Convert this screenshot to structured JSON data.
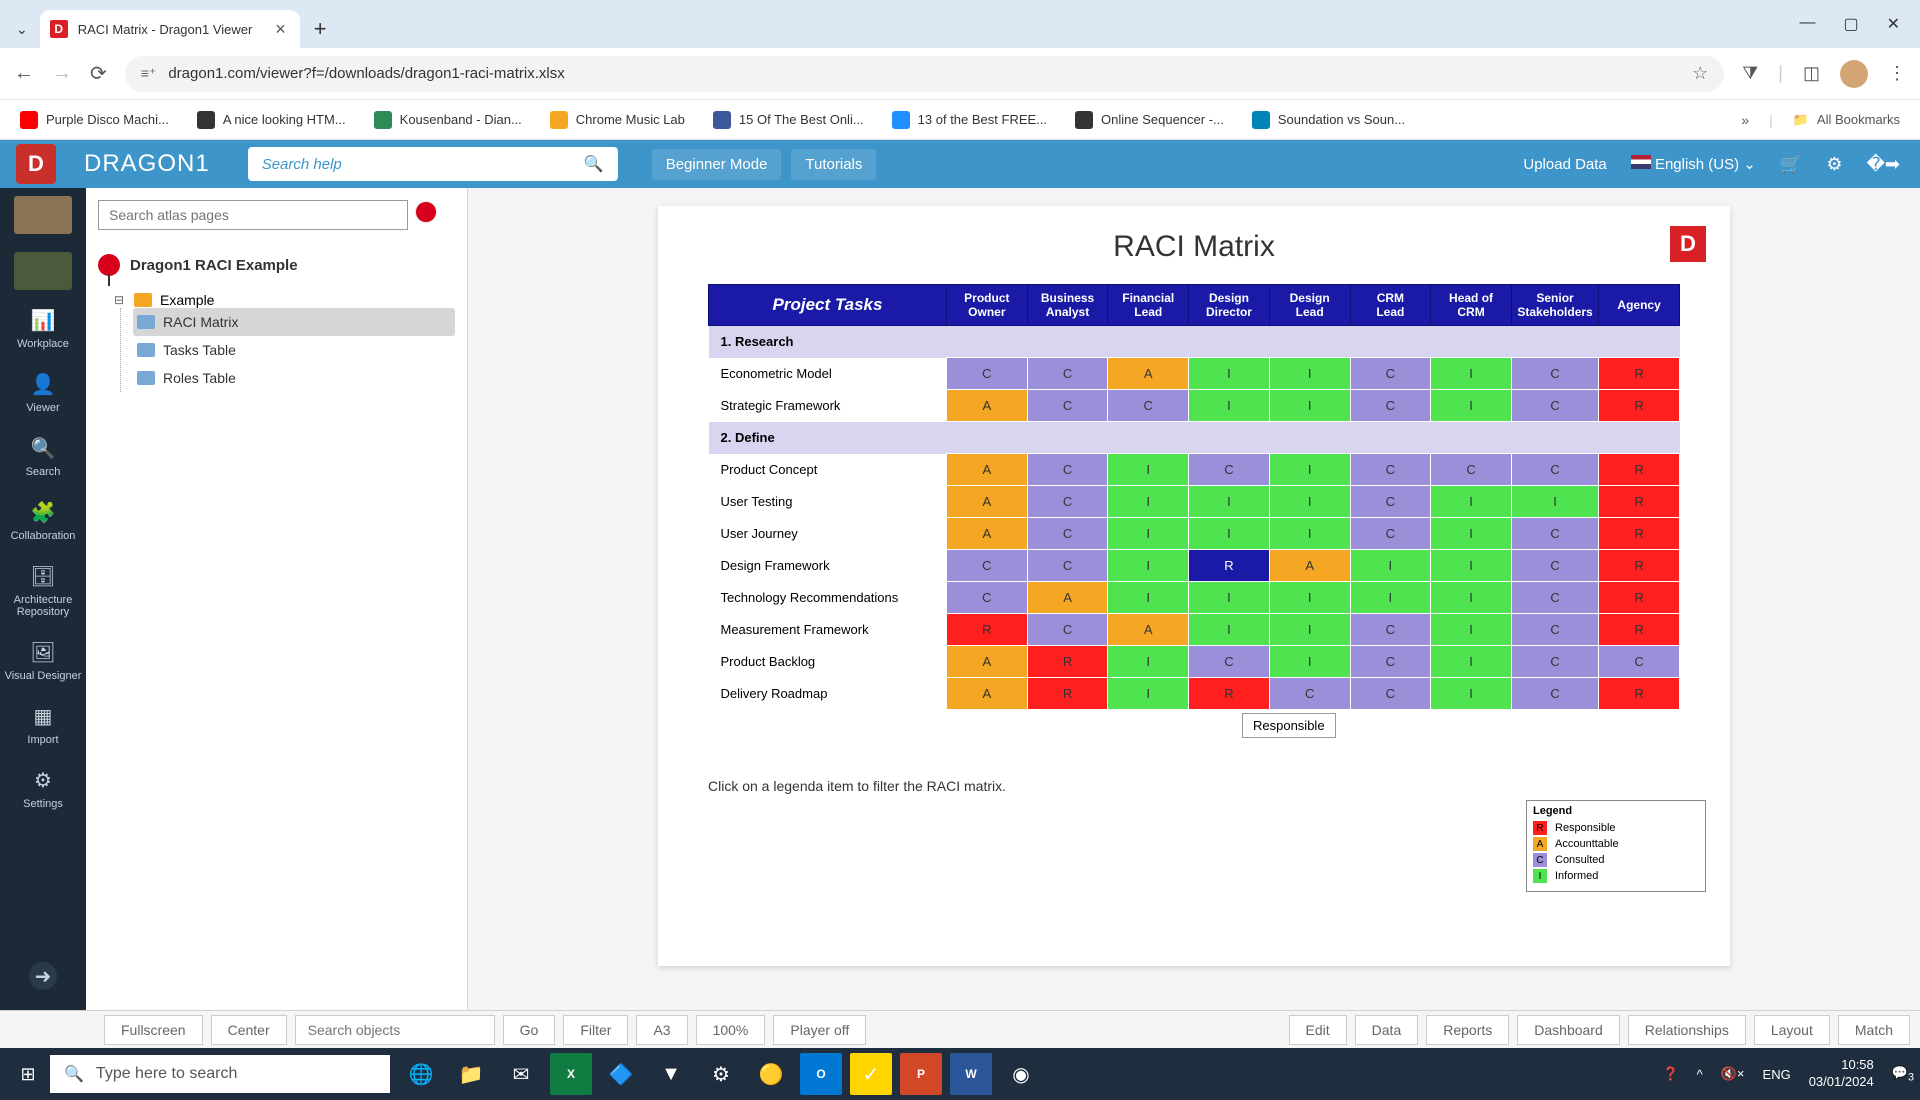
{
  "browser": {
    "tab_title": "RACI Matrix - Dragon1 Viewer",
    "url": "dragon1.com/viewer?f=/downloads/dragon1-raci-matrix.xlsx",
    "bookmarks": [
      {
        "label": "Purple Disco Machi...",
        "color": "#ff0000"
      },
      {
        "label": "A nice looking HTM...",
        "color": "#333"
      },
      {
        "label": "Kousenband - Dian...",
        "color": "#2e8b57"
      },
      {
        "label": "Chrome Music Lab",
        "color": "#f5a623"
      },
      {
        "label": "15 Of The Best Onli...",
        "color": "#3b5998"
      },
      {
        "label": "13 of the Best FREE...",
        "color": "#1e90ff"
      },
      {
        "label": "Online Sequencer -...",
        "color": "#333"
      },
      {
        "label": "Soundation vs Soun...",
        "color": "#0085ba"
      }
    ],
    "all_bookmarks": "All Bookmarks"
  },
  "app": {
    "brand": "DRAGON1",
    "search_placeholder": "Search help",
    "beginner_mode": "Beginner Mode",
    "tutorials": "Tutorials",
    "upload": "Upload Data",
    "language": "English (US)"
  },
  "rail": {
    "workplace": "Workplace",
    "viewer": "Viewer",
    "search": "Search",
    "collaboration": "Collaboration",
    "architecture": "Architecture Repository",
    "visual": "Visual Designer",
    "import": "Import",
    "settings": "Settings"
  },
  "tree": {
    "search_placeholder": "Search atlas pages",
    "root": "Dragon1 RACI Example",
    "example": "Example",
    "raci_matrix": "RACI Matrix",
    "tasks_table": "Tasks Table",
    "roles_table": "Roles Table"
  },
  "matrix": {
    "title": "RACI Matrix",
    "header_task": "Project Tasks",
    "columns": [
      "Product Owner",
      "Business Analyst",
      "Financial Lead",
      "Design Director",
      "Design Lead",
      "CRM Lead",
      "Head of CRM",
      "Senior Stakeholders",
      "Agency"
    ],
    "sections": [
      {
        "title": "1. Research",
        "rows": [
          {
            "task": "Econometric Model",
            "cells": [
              "C",
              "C",
              "A",
              "I",
              "I",
              "C",
              "I",
              "C",
              "R"
            ]
          },
          {
            "task": "Strategic Framework",
            "cells": [
              "A",
              "C",
              "C",
              "I",
              "I",
              "C",
              "I",
              "C",
              "R"
            ]
          }
        ]
      },
      {
        "title": "2. Define",
        "rows": [
          {
            "task": "Product Concept",
            "cells": [
              "A",
              "C",
              "I",
              "C",
              "I",
              "C",
              "C",
              "C",
              "R"
            ]
          },
          {
            "task": "User Testing",
            "cells": [
              "A",
              "C",
              "I",
              "I",
              "I",
              "C",
              "I",
              "I",
              "R"
            ]
          },
          {
            "task": "User Journey",
            "cells": [
              "A",
              "C",
              "I",
              "I",
              "I",
              "C",
              "I",
              "C",
              "R"
            ]
          },
          {
            "task": "Design Framework",
            "cells": [
              "C",
              "C",
              "I",
              "Rd",
              "A",
              "I",
              "I",
              "C",
              "R"
            ]
          },
          {
            "task": "Technology Recommendations",
            "cells": [
              "C",
              "A",
              "I",
              "I",
              "I",
              "I",
              "I",
              "C",
              "R"
            ]
          },
          {
            "task": "Measurement Framework",
            "cells": [
              "R",
              "C",
              "A",
              "I",
              "I",
              "C",
              "I",
              "C",
              "R"
            ]
          },
          {
            "task": "Product Backlog",
            "cells": [
              "A",
              "R",
              "I",
              "C",
              "I",
              "C",
              "I",
              "C",
              "C"
            ]
          },
          {
            "task": "Delivery Roadmap",
            "cells": [
              "A",
              "R",
              "I",
              "R",
              "C",
              "C",
              "I",
              "C",
              "R"
            ]
          }
        ]
      }
    ],
    "tooltip": "Responsible",
    "legend_title": "Legend",
    "legend": [
      {
        "code": "R",
        "label": "Responsible",
        "class": "c-R"
      },
      {
        "code": "A",
        "label": "Accounttable",
        "class": "c-A"
      },
      {
        "code": "C",
        "label": "Consulted",
        "class": "c-C"
      },
      {
        "code": "I",
        "label": "Informed",
        "class": "c-I"
      }
    ],
    "hint": "Click on a legenda item to filter the RACI matrix.",
    "cell_colors": {
      "R": "#ff1f1f",
      "A": "#f5a623",
      "C": "#9b8fd9",
      "I": "#4fe34f",
      "Rd": "#1a1aa6"
    }
  },
  "bottom": {
    "fullscreen": "Fullscreen",
    "center": "Center",
    "search_objects": "Search objects",
    "go": "Go",
    "filter": "Filter",
    "a3": "A3",
    "zoom": "100%",
    "player": "Player off",
    "edit": "Edit",
    "data": "Data",
    "reports": "Reports",
    "dashboard": "Dashboard",
    "relationships": "Relationships",
    "layout": "Layout",
    "match": "Match"
  },
  "taskbar": {
    "search_placeholder": "Type here to search",
    "lang": "ENG",
    "time": "10:58",
    "date": "03/01/2024",
    "notif": "3"
  }
}
